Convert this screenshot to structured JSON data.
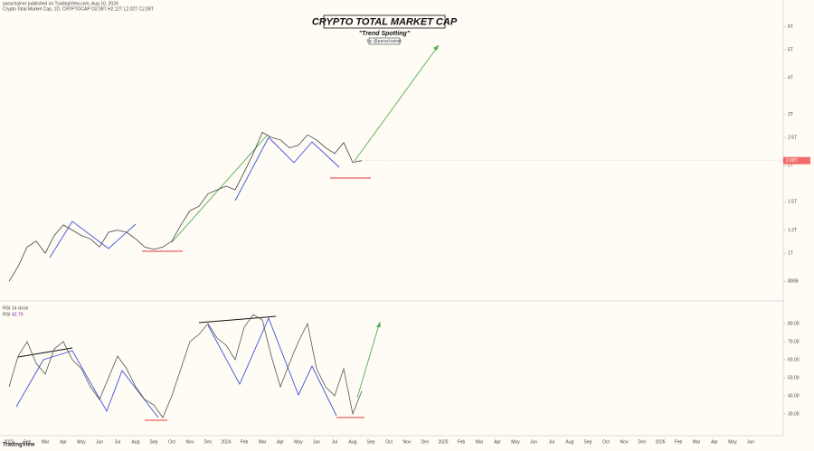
{
  "header": {
    "author_line": "parachainer published on TradingView.com, Aug 10, 2024",
    "symbol_line": "Crypto Total Market Cap, 1D, CRYPTOCAP  O2.08T H2.12T L2.02T C2.08T"
  },
  "chart_data": [
    {
      "type": "line",
      "title": "CRYPTO TOTAL MARKET CAP",
      "subtitle": "\"Trend Spotting\"",
      "byline": "by @parachainer",
      "categories": [
        "2023",
        null,
        "Feb",
        null,
        "Mar",
        null,
        "Apr",
        null,
        "May",
        null,
        "Jun",
        null,
        "Jul",
        null,
        "Aug",
        null,
        "Sep",
        null,
        "Oct",
        null,
        "Nov",
        null,
        "Dec",
        null,
        "2024",
        null,
        "Feb",
        null,
        "Mar",
        null,
        "Apr",
        null,
        "May",
        null,
        "Jun",
        null,
        "Jul",
        null,
        "Aug",
        null,
        "Sep",
        null,
        "Oct",
        null,
        "Nov",
        null,
        "Dec",
        null,
        "2025",
        null,
        "Feb",
        null,
        "Mar",
        null,
        "Apr",
        null,
        "May",
        null,
        "Jun",
        null,
        "Jul",
        null,
        "Aug",
        null,
        "Sep",
        null,
        "Oct",
        null,
        "Nov",
        null,
        "Dec",
        null,
        "2026",
        null,
        "Feb",
        null,
        "Mar",
        null,
        "Apr",
        null,
        "May",
        null,
        "Jun",
        null
      ],
      "series": [
        {
          "color": "#444444",
          "values": [
            0.8,
            0.9,
            1.05,
            1.1,
            1.0,
            1.15,
            1.25,
            1.2,
            1.15,
            1.12,
            1.05,
            1.18,
            1.2,
            1.18,
            1.12,
            1.05,
            1.03,
            1.05,
            1.1,
            1.25,
            1.4,
            1.45,
            1.6,
            1.65,
            1.7,
            1.65,
            1.9,
            2.2,
            2.6,
            2.5,
            2.45,
            2.3,
            2.35,
            2.55,
            2.45,
            2.3,
            2.2,
            2.4,
            2.05,
            2.08,
            null,
            null,
            null,
            null,
            null,
            null,
            null,
            null,
            null,
            null,
            null,
            null,
            null,
            null,
            null,
            null,
            null,
            null,
            null,
            null,
            null,
            null,
            null,
            null,
            null,
            null,
            null,
            null,
            null,
            null,
            null,
            null,
            null,
            null,
            null,
            null,
            null,
            null,
            null,
            null,
            null,
            null,
            null,
            null
          ]
        }
      ],
      "price_label": "2.08T",
      "log_scale": true,
      "ylim": [
        0.7,
        7
      ],
      "yticks": [
        {
          "value": 0.8,
          "label": "800B"
        },
        {
          "value": 1,
          "label": "1T"
        },
        {
          "value": 1.2,
          "label": "1.2T"
        },
        {
          "value": 1.5,
          "label": "1.5T"
        },
        {
          "value": 2,
          "label": "2T"
        },
        {
          "value": 2.5,
          "label": "2.5T"
        },
        {
          "value": 3,
          "label": "3T"
        },
        {
          "value": 4,
          "label": "4T"
        },
        {
          "value": 5,
          "label": "5T"
        },
        {
          "value": 6,
          "label": "6T"
        }
      ]
    },
    {
      "type": "line",
      "legend_title": "RSI 14 close",
      "series": [
        {
          "name": "RSI",
          "color": "#555555",
          "values": [
            45,
            62,
            70,
            58,
            52,
            66,
            70,
            60,
            55,
            45,
            38,
            50,
            62,
            55,
            45,
            38,
            35,
            28,
            40,
            55,
            70,
            74,
            80,
            72,
            68,
            60,
            78,
            85,
            82,
            62,
            45,
            58,
            70,
            80,
            55,
            45,
            40,
            55,
            30,
            42.7,
            null,
            null,
            null,
            null,
            null,
            null,
            null,
            null,
            null,
            null,
            null,
            null,
            null,
            null,
            null,
            null,
            null,
            null,
            null,
            null,
            null,
            null,
            null,
            null,
            null,
            null,
            null,
            null,
            null,
            null,
            null,
            null,
            null,
            null,
            null,
            null,
            null,
            null,
            null,
            null,
            null,
            null,
            null,
            null
          ],
          "last_label": "42.70"
        }
      ],
      "ylim": [
        20,
        90
      ],
      "yticks": [
        {
          "value": 30,
          "label": "30.00"
        },
        {
          "value": 40,
          "label": "40.00"
        },
        {
          "value": 50,
          "label": "50.00"
        },
        {
          "value": 60,
          "label": "60.00"
        },
        {
          "value": 70,
          "label": "70.00"
        },
        {
          "value": 80,
          "label": "80.00"
        }
      ]
    }
  ],
  "footer": {
    "logo": "TradingView"
  }
}
